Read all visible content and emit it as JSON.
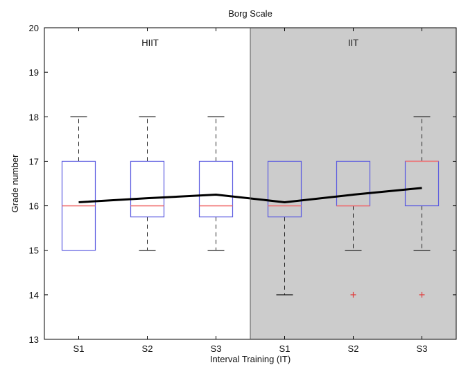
{
  "chart_data": {
    "type": "box",
    "title": "Borg Scale",
    "xlabel": "Interval Training (IT)",
    "ylabel": "Grade number",
    "ylim": [
      13,
      20
    ],
    "yticks": [
      13,
      14,
      15,
      16,
      17,
      18,
      19,
      20
    ],
    "categories": [
      "S1",
      "S2",
      "S3",
      "S1",
      "S2",
      "S3"
    ],
    "groups": [
      {
        "label": "HIIT",
        "categories": [
          0,
          1,
          2
        ],
        "shaded": false
      },
      {
        "label": "IIT",
        "categories": [
          3,
          4,
          5
        ],
        "shaded": true
      }
    ],
    "boxes": [
      {
        "min": 15,
        "q1": 15,
        "median": 16,
        "q3": 17,
        "max": 18,
        "outliers": []
      },
      {
        "min": 15,
        "q1": 15.75,
        "median": 16,
        "q3": 17,
        "max": 18,
        "outliers": []
      },
      {
        "min": 15,
        "q1": 15.75,
        "median": 16,
        "q3": 17,
        "max": 18,
        "outliers": []
      },
      {
        "min": 14,
        "q1": 15.75,
        "median": 16,
        "q3": 17,
        "max": 17,
        "outliers": []
      },
      {
        "min": 15,
        "q1": 16,
        "median": 16,
        "q3": 17,
        "max": 17,
        "outliers": [
          14
        ]
      },
      {
        "min": 15,
        "q1": 16,
        "median": 17,
        "q3": 17,
        "max": 18,
        "outliers": [
          14
        ]
      }
    ],
    "mean_line": [
      16.08,
      16.17,
      16.25,
      16.08,
      16.25,
      16.4
    ],
    "colors": {
      "box": "#5a5ae0",
      "median": "#f07070",
      "whisker": "#222222",
      "outlier": "#e04040",
      "mean_line": "#000000",
      "shade": "#cccccc",
      "axis": "#000000"
    }
  }
}
